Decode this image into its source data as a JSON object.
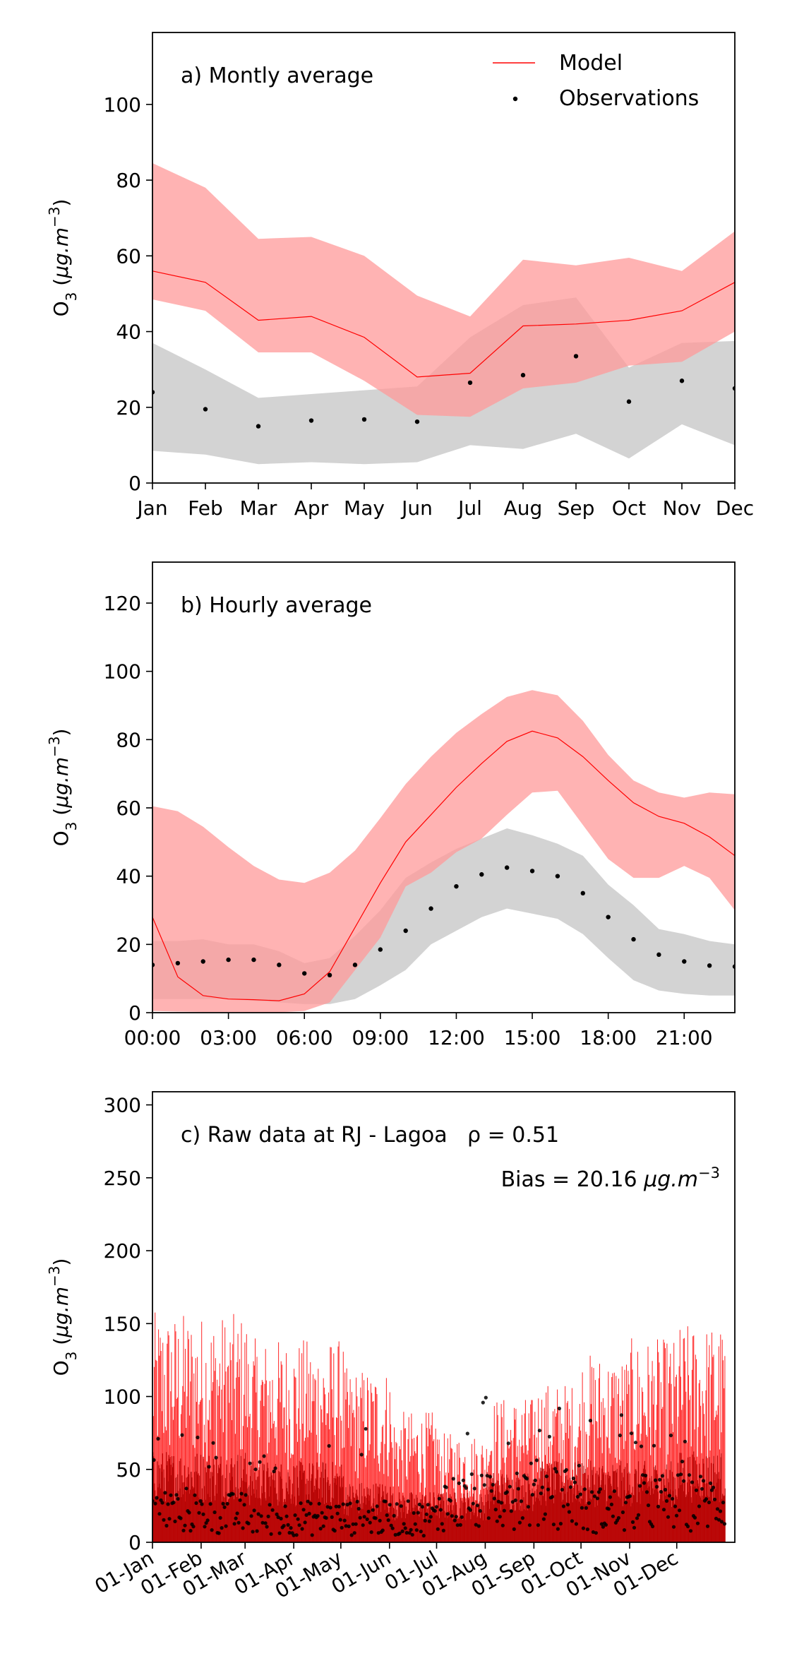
{
  "chart_data": [
    {
      "type": "line",
      "annotation": "a) Montly average",
      "ylabel": "O3 (μg.m-3)",
      "xlabel": "",
      "ylim": [
        0,
        119
      ],
      "yticks": [
        0,
        20,
        40,
        60,
        80,
        100
      ],
      "categories": [
        "Jan",
        "Feb",
        "Mar",
        "Apr",
        "May",
        "Jun",
        "Jul",
        "Aug",
        "Sep",
        "Oct",
        "Nov",
        "Dec"
      ],
      "legend": {
        "placement": "top-right",
        "entries": [
          "Model",
          "Observations"
        ]
      },
      "series": [
        {
          "name": "Model",
          "values": [
            56.0,
            53.0,
            43.0,
            44.0,
            38.5,
            28.0,
            29.0,
            41.5,
            42.0,
            43.0,
            45.5,
            53.0
          ],
          "band_low": [
            48.5,
            45.5,
            34.5,
            34.5,
            27.0,
            18.0,
            17.5,
            25.0,
            26.5,
            31.0,
            32.0,
            40.0
          ],
          "band_high": [
            84.5,
            78.0,
            64.5,
            65.0,
            60.0,
            49.5,
            44.0,
            59.0,
            57.5,
            59.5,
            56.0,
            66.5
          ]
        },
        {
          "name": "Observations",
          "values": [
            24.0,
            19.5,
            15.0,
            16.5,
            16.8,
            16.2,
            26.5,
            28.5,
            33.5,
            21.5,
            27.0,
            25.0
          ],
          "band_low": [
            8.5,
            7.5,
            5.0,
            5.5,
            5.0,
            5.5,
            10.0,
            9.0,
            13.0,
            6.5,
            15.5,
            10.0
          ],
          "band_high": [
            37.0,
            30.0,
            22.5,
            23.5,
            24.5,
            25.5,
            38.5,
            47.0,
            49.0,
            30.5,
            37.0,
            37.5
          ]
        }
      ],
      "colors": {
        "model_line": "#ff0000",
        "model_band": "#ff9a9a",
        "obs_band": "#c8c8c8",
        "obs_point": "#000000"
      }
    },
    {
      "type": "line",
      "annotation": "b) Hourly average",
      "ylabel": "O3 (μg.m-3)",
      "xlabel": "",
      "ylim": [
        0,
        132
      ],
      "yticks": [
        0,
        20,
        40,
        60,
        80,
        100,
        120
      ],
      "x_hours": [
        0,
        1,
        2,
        3,
        4,
        5,
        6,
        7,
        8,
        9,
        10,
        11,
        12,
        13,
        14,
        15,
        16,
        17,
        18,
        19,
        20,
        21,
        22,
        23
      ],
      "xticks": [
        {
          "hour": 0,
          "label": "00:00"
        },
        {
          "hour": 3,
          "label": "03:00"
        },
        {
          "hour": 6,
          "label": "06:00"
        },
        {
          "hour": 9,
          "label": "09:00"
        },
        {
          "hour": 12,
          "label": "12:00"
        },
        {
          "hour": 15,
          "label": "15:00"
        },
        {
          "hour": 18,
          "label": "18:00"
        },
        {
          "hour": 21,
          "label": "21:00"
        }
      ],
      "series": [
        {
          "name": "Model",
          "values": [
            28.0,
            10.5,
            5.0,
            4.0,
            3.8,
            3.5,
            5.5,
            12.0,
            25.0,
            38.0,
            50.0,
            58.0,
            66.0,
            73.0,
            79.5,
            82.5,
            80.5,
            75.0,
            68.0,
            61.5,
            57.5,
            55.5,
            51.5,
            46.0
          ],
          "band_low": [
            0.5,
            0.3,
            0.2,
            0.2,
            0.1,
            0.1,
            0.5,
            3.0,
            12.5,
            22.0,
            37.0,
            41.0,
            47.0,
            51.0,
            58.0,
            64.5,
            65.0,
            55.0,
            45.0,
            39.5,
            39.5,
            43.0,
            39.5,
            30.0
          ],
          "band_high": [
            60.5,
            59.0,
            54.5,
            48.5,
            43.0,
            39.0,
            38.0,
            41.0,
            47.5,
            57.0,
            67.0,
            75.0,
            82.0,
            87.5,
            92.5,
            94.5,
            93.0,
            85.5,
            75.5,
            68.0,
            64.5,
            63.0,
            64.5,
            64.0
          ]
        },
        {
          "name": "Observations",
          "values": [
            14.0,
            14.5,
            15.0,
            15.5,
            15.5,
            14.0,
            11.5,
            11.0,
            14.0,
            18.5,
            24.0,
            30.5,
            37.0,
            40.5,
            42.5,
            41.5,
            40.0,
            35.0,
            28.0,
            21.5,
            17.0,
            15.0,
            13.8,
            13.5
          ],
          "band_low": [
            4.0,
            4.0,
            4.0,
            4.0,
            3.5,
            3.0,
            2.5,
            2.5,
            4.0,
            8.0,
            12.5,
            20.0,
            24.0,
            28.0,
            30.5,
            29.0,
            27.5,
            23.0,
            16.0,
            9.5,
            6.5,
            5.5,
            5.0,
            5.0
          ],
          "band_high": [
            21.0,
            21.0,
            21.5,
            20.0,
            20.0,
            18.0,
            14.5,
            16.0,
            22.5,
            30.0,
            39.5,
            44.0,
            48.0,
            51.0,
            54.0,
            52.0,
            49.5,
            46.0,
            37.5,
            31.5,
            24.5,
            23.0,
            21.0,
            20.0
          ]
        }
      ],
      "colors": {
        "model_line": "#ff0000",
        "model_band": "#ff9a9a",
        "obs_band": "#c8c8c8",
        "obs_point": "#000000"
      }
    },
    {
      "type": "line",
      "annotation": "c) Raw data at RJ - Lagoa",
      "stat_rho": "ρ = 0.51",
      "stat_bias": "Bias = 20.16 μg.m-3",
      "ylabel": "O3 (μg.m-3)",
      "xlabel": "",
      "ylim": [
        0,
        309
      ],
      "yticks": [
        0,
        50,
        100,
        150,
        200,
        250,
        300
      ],
      "xticks": [
        {
          "day": 0,
          "label": "01-Jan"
        },
        {
          "day": 31,
          "label": "01-Feb"
        },
        {
          "day": 59,
          "label": "01-Mar"
        },
        {
          "day": 90,
          "label": "01-Apr"
        },
        {
          "day": 120,
          "label": "01-May"
        },
        {
          "day": 151,
          "label": "01-Jun"
        },
        {
          "day": 181,
          "label": "01-Jul"
        },
        {
          "day": 212,
          "label": "01-Aug"
        },
        {
          "day": 243,
          "label": "01-Sep"
        },
        {
          "day": 273,
          "label": "01-Oct"
        },
        {
          "day": 304,
          "label": "01-Nov"
        },
        {
          "day": 334,
          "label": "01-Dec"
        }
      ],
      "xlim_days": [
        0,
        371
      ],
      "series": [
        {
          "name": "Model",
          "monthly_peaks": [
            158,
            157,
            140,
            140,
            120,
            90,
            75,
            100,
            110,
            130,
            140,
            150
          ],
          "monthly_base": [
            45,
            45,
            40,
            40,
            30,
            25,
            25,
            35,
            40,
            40,
            40,
            45
          ]
        },
        {
          "name": "Observations",
          "monthly_peaks": [
            75,
            70,
            60,
            90,
            85,
            85,
            100,
            95,
            100,
            90,
            75,
            70
          ],
          "monthly_base": [
            20,
            18,
            15,
            15,
            15,
            15,
            25,
            30,
            30,
            20,
            25,
            25
          ]
        }
      ],
      "colors": {
        "model_line": "#ff0000",
        "model_dark": "#b30000",
        "obs_point": "#000000"
      }
    }
  ]
}
